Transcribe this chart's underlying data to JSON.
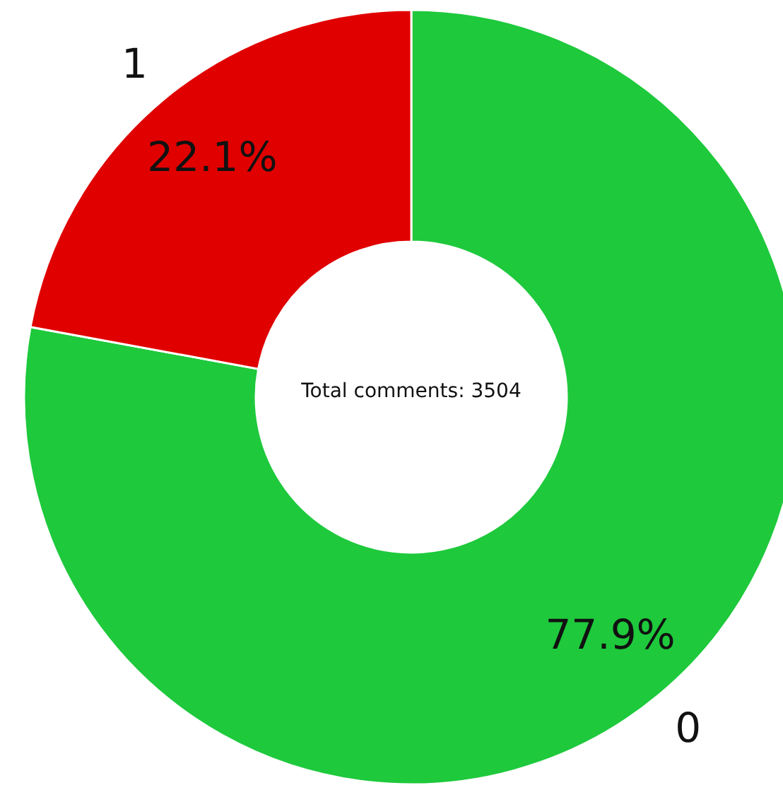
{
  "chart_data": {
    "type": "donut",
    "categories": [
      "0",
      "1"
    ],
    "values": [
      77.9,
      22.1
    ],
    "colors": [
      "#1ec93c",
      "#e00000"
    ],
    "value_labels": [
      "77.9%",
      "22.1%"
    ],
    "annotations": [
      "Total comments: 3504"
    ]
  }
}
